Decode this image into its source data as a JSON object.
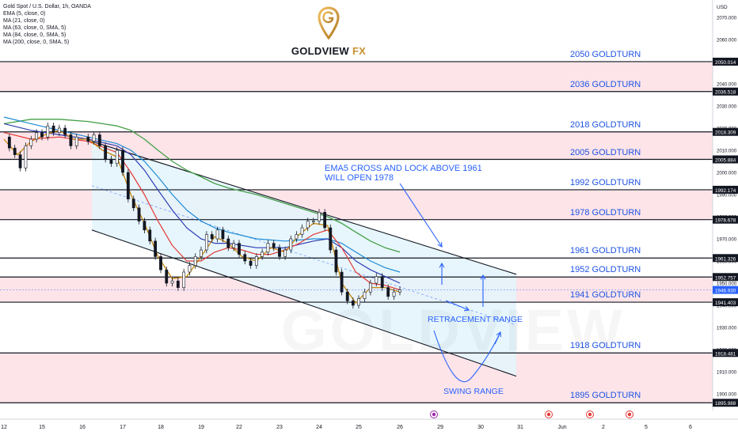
{
  "legend": {
    "title": "Gold Spot / U.S. Dollar, 1h, OANDA",
    "indicators": [
      "EMA (5, close, 0)",
      "MA (21, close, 0)",
      "MA (63, close, 0, SMA, 5)",
      "MA (84, close, 0, SMA, 5)",
      "MA (200, close, 0, SMA, 5)"
    ]
  },
  "logo": {
    "brand": "GOLDVIEW",
    "suffix": "FX",
    "watermark": "GOLDVIEW"
  },
  "colors": {
    "channel_fill": "#e3f4fb",
    "pink_band": "#fde4e8",
    "ema5": "#c8860a",
    "ma21": "#e53935",
    "ma63": "#303fb5",
    "ma84": "#1e8bd6",
    "ma200": "#43a047",
    "annotation": "#2962ff",
    "price_label": "#1e53e5"
  },
  "chart_data": {
    "type": "line",
    "title": "Gold Spot / U.S. Dollar, 1h, OANDA",
    "yunit": "USD",
    "ylim": [
      1892.5,
      2075
    ],
    "y_ticks": [
      "2070.000",
      "2060.000",
      "2050.000",
      "2040.000",
      "2030.000",
      "2020.000",
      "2010.000",
      "2000.000",
      "1990.000",
      "1980.000",
      "1970.000",
      "1960.000",
      "1950.000",
      "1940.000",
      "1930.000",
      "1920.000",
      "1910.000",
      "1900.000"
    ],
    "x_ticks": [
      {
        "label": "12",
        "day": 12
      },
      {
        "label": "15",
        "day": 15
      },
      {
        "label": "16",
        "day": 16
      },
      {
        "label": "17",
        "day": 17
      },
      {
        "label": "18",
        "day": 18
      },
      {
        "label": "19",
        "day": 19
      },
      {
        "label": "22",
        "day": 22
      },
      {
        "label": "23",
        "day": 23
      },
      {
        "label": "24",
        "day": 24
      },
      {
        "label": "25",
        "day": 25
      },
      {
        "label": "26",
        "day": 26
      },
      {
        "label": "29",
        "day": 29
      },
      {
        "label": "30",
        "day": 30
      },
      {
        "label": "31",
        "day": 31
      },
      {
        "label": "Jun",
        "day": 32
      },
      {
        "label": "2",
        "day": 33
      },
      {
        "label": "5",
        "day": 34
      },
      {
        "label": "6",
        "day": 35
      }
    ],
    "levels": [
      {
        "price": 2050.014,
        "name": "2050 GOLDTURN",
        "tag": "2050.014"
      },
      {
        "price": 2036.518,
        "name": "2036 GOLDTURN",
        "tag": "2036.518"
      },
      {
        "price": 2018.309,
        "name": "2018 GOLDTURN",
        "tag": "2018.309"
      },
      {
        "price": 2005.884,
        "name": "2005 GOLDTURN",
        "tag": "2005.884"
      },
      {
        "price": 1992.174,
        "name": "1992 GOLDTURN",
        "tag": "1992.174"
      },
      {
        "price": 1978.678,
        "name": "1978 GOLDTURN",
        "tag": "1978.678"
      },
      {
        "price": 1961.326,
        "name": "1961 GOLDTURN",
        "tag": "1961.326"
      },
      {
        "price": 1952.757,
        "name": "1952 GOLDTURN",
        "tag": "1952.757"
      },
      {
        "price": 1941.403,
        "name": "1941 GOLDTURN",
        "tag": "1941.403"
      },
      {
        "price": 1918.481,
        "name": "1918 GOLDTURN",
        "tag": "1918.481"
      },
      {
        "price": 1895.988,
        "name": "1895 GOLDTURN",
        "tag": "1895.988"
      }
    ],
    "current_price": {
      "price": 1946.93,
      "tag": "1946.930"
    },
    "pink_zones": [
      [
        2036.518,
        2050.014
      ],
      [
        2005.884,
        2018.309
      ],
      [
        1978.678,
        1992.174
      ],
      [
        1941.403,
        1952.757
      ],
      [
        1895.988,
        1918.481
      ]
    ],
    "price_series": [
      [
        12.0,
        2016
      ],
      [
        12.2,
        2011
      ],
      [
        12.4,
        2008
      ],
      [
        12.6,
        2002
      ],
      [
        12.8,
        2012
      ],
      [
        13.0,
        2015
      ],
      [
        13.2,
        2018
      ],
      [
        13.4,
        2016
      ],
      [
        13.6,
        2021
      ],
      [
        13.8,
        2018
      ],
      [
        14.0,
        2020
      ],
      [
        14.2,
        2017
      ],
      [
        14.4,
        2012
      ],
      [
        14.6,
        2016
      ],
      [
        15.0,
        2014
      ],
      [
        15.2,
        2017
      ],
      [
        15.4,
        2012
      ],
      [
        15.6,
        2006
      ],
      [
        15.8,
        2004
      ],
      [
        16.0,
        2010
      ],
      [
        16.2,
        2000
      ],
      [
        16.4,
        1988
      ],
      [
        16.6,
        1984
      ],
      [
        16.8,
        1978
      ],
      [
        17.0,
        1974
      ],
      [
        17.2,
        1969
      ],
      [
        17.4,
        1962
      ],
      [
        17.6,
        1956
      ],
      [
        17.8,
        1950
      ],
      [
        18.0,
        1951
      ],
      [
        18.2,
        1948
      ],
      [
        18.4,
        1955
      ],
      [
        18.6,
        1958
      ],
      [
        18.8,
        1962
      ],
      [
        19.0,
        1965
      ],
      [
        19.2,
        1972
      ],
      [
        19.4,
        1970
      ],
      [
        19.6,
        1974
      ],
      [
        19.8,
        1970
      ],
      [
        20.0,
        1966
      ],
      [
        20.2,
        1968
      ],
      [
        20.4,
        1963
      ],
      [
        20.6,
        1960
      ],
      [
        20.8,
        1958
      ],
      [
        21.0,
        1962
      ],
      [
        21.2,
        1964
      ],
      [
        21.4,
        1968
      ],
      [
        21.6,
        1966
      ],
      [
        21.8,
        1962
      ],
      [
        22.0,
        1965
      ],
      [
        22.2,
        1970
      ],
      [
        22.4,
        1972
      ],
      [
        22.6,
        1975
      ],
      [
        22.8,
        1978
      ],
      [
        23.0,
        1978
      ],
      [
        23.2,
        1982
      ],
      [
        23.4,
        1975
      ],
      [
        23.6,
        1965
      ],
      [
        23.8,
        1955
      ],
      [
        24.0,
        1946
      ],
      [
        24.2,
        1942
      ],
      [
        24.4,
        1940
      ],
      [
        24.6,
        1943
      ],
      [
        24.8,
        1946
      ],
      [
        25.0,
        1950
      ],
      [
        25.2,
        1953
      ],
      [
        25.4,
        1948
      ],
      [
        25.6,
        1944
      ],
      [
        25.8,
        1946
      ],
      [
        26.0,
        1947
      ]
    ],
    "ema5": [
      [
        12.0,
        2015
      ],
      [
        12.5,
        2008
      ],
      [
        13.0,
        2014
      ],
      [
        13.5,
        2017
      ],
      [
        14.0,
        2019
      ],
      [
        14.5,
        2015
      ],
      [
        15.0,
        2015
      ],
      [
        15.5,
        2010
      ],
      [
        16.0,
        2007
      ],
      [
        16.5,
        1990
      ],
      [
        17.0,
        1977
      ],
      [
        17.5,
        1962
      ],
      [
        18.0,
        1952
      ],
      [
        18.5,
        1953
      ],
      [
        19.0,
        1962
      ],
      [
        19.5,
        1971
      ],
      [
        20.0,
        1968
      ],
      [
        20.5,
        1962
      ],
      [
        21.0,
        1960
      ],
      [
        21.5,
        1966
      ],
      [
        22.0,
        1964
      ],
      [
        22.5,
        1972
      ],
      [
        23.0,
        1977
      ],
      [
        23.5,
        1976
      ],
      [
        24.0,
        1950
      ],
      [
        24.5,
        1941
      ],
      [
        25.0,
        1948
      ],
      [
        25.5,
        1948
      ],
      [
        26.0,
        1946
      ]
    ],
    "ma21": [
      [
        12.0,
        2018
      ],
      [
        13.0,
        2015
      ],
      [
        14.0,
        2016
      ],
      [
        15.0,
        2014
      ],
      [
        16.0,
        2009
      ],
      [
        16.5,
        2000
      ],
      [
        17.0,
        1990
      ],
      [
        17.5,
        1978
      ],
      [
        18.0,
        1967
      ],
      [
        18.5,
        1960
      ],
      [
        19.0,
        1960
      ],
      [
        19.5,
        1964
      ],
      [
        20.0,
        1966
      ],
      [
        20.5,
        1965
      ],
      [
        21.0,
        1963
      ],
      [
        21.5,
        1963
      ],
      [
        22.0,
        1965
      ],
      [
        22.5,
        1968
      ],
      [
        23.0,
        1972
      ],
      [
        23.5,
        1974
      ],
      [
        24.0,
        1966
      ],
      [
        24.5,
        1955
      ],
      [
        25.0,
        1950
      ],
      [
        25.5,
        1949
      ],
      [
        26.0,
        1947
      ]
    ],
    "ma63": [
      [
        12.0,
        2022
      ],
      [
        13.0,
        2019
      ],
      [
        14.0,
        2017
      ],
      [
        15.0,
        2015
      ],
      [
        16.0,
        2012
      ],
      [
        16.5,
        2008
      ],
      [
        17.0,
        2001
      ],
      [
        17.5,
        1992
      ],
      [
        18.0,
        1983
      ],
      [
        18.5,
        1975
      ],
      [
        19.0,
        1970
      ],
      [
        19.5,
        1968
      ],
      [
        20.0,
        1968
      ],
      [
        21.0,
        1966
      ],
      [
        22.0,
        1966
      ],
      [
        23.0,
        1969
      ],
      [
        23.5,
        1970
      ],
      [
        24.0,
        1966
      ],
      [
        24.5,
        1960
      ],
      [
        25.0,
        1956
      ],
      [
        25.5,
        1953
      ],
      [
        26.0,
        1950
      ]
    ],
    "ma84": [
      [
        12.0,
        2025
      ],
      [
        13.0,
        2022
      ],
      [
        14.0,
        2019
      ],
      [
        15.0,
        2016
      ],
      [
        16.0,
        2013
      ],
      [
        16.5,
        2010
      ],
      [
        17.0,
        2005
      ],
      [
        17.5,
        1998
      ],
      [
        18.0,
        1990
      ],
      [
        18.5,
        1983
      ],
      [
        19.0,
        1978
      ],
      [
        19.5,
        1975
      ],
      [
        20.0,
        1973
      ],
      [
        21.0,
        1970
      ],
      [
        22.0,
        1969
      ],
      [
        23.0,
        1970
      ],
      [
        23.5,
        1970
      ],
      [
        24.0,
        1968
      ],
      [
        24.5,
        1964
      ],
      [
        25.0,
        1960
      ],
      [
        25.5,
        1957
      ],
      [
        26.0,
        1955
      ]
    ],
    "ma200": [
      [
        12.0,
        2022
      ],
      [
        13.0,
        2024
      ],
      [
        14.0,
        2024
      ],
      [
        15.0,
        2023
      ],
      [
        16.0,
        2021
      ],
      [
        16.5,
        2019
      ],
      [
        17.0,
        2015
      ],
      [
        17.5,
        2010
      ],
      [
        18.0,
        2005
      ],
      [
        18.5,
        2001
      ],
      [
        19.0,
        1998
      ],
      [
        19.5,
        1995
      ],
      [
        20.0,
        1993
      ],
      [
        21.0,
        1990
      ],
      [
        22.0,
        1986
      ],
      [
        23.0,
        1982
      ],
      [
        23.5,
        1980
      ],
      [
        24.0,
        1977
      ],
      [
        24.5,
        1973
      ],
      [
        25.0,
        1969
      ],
      [
        25.5,
        1966
      ],
      [
        26.0,
        1964
      ]
    ],
    "channel": {
      "upper": [
        [
          13.8,
          2014
        ],
        [
          30.0,
          1954
        ]
      ],
      "lower": [
        [
          13.8,
          1974
        ],
        [
          30.0,
          1908
        ]
      ],
      "mid": [
        [
          13.8,
          1993
        ],
        [
          30.0,
          1932
        ]
      ]
    },
    "annotations": [
      {
        "text": [
          "EMA5 CROSS AND LOCK ABOVE 1961",
          "WILL OPEN 1978"
        ]
      },
      {
        "text": [
          "RETRACEMENT RANGE"
        ]
      },
      {
        "text": [
          "SWING RANGE"
        ]
      }
    ],
    "axis_unit_label": "USD",
    "grid": false,
    "legend_placement": "top-left"
  }
}
